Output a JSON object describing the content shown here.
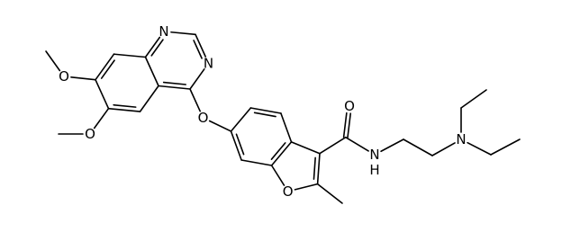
{
  "atoms": [
    {
      "label": "N"
    },
    {
      "label": "N"
    },
    {
      "label": "O"
    },
    {
      "label": "O"
    },
    {
      "label": "O"
    },
    {
      "label": "O"
    },
    {
      "label": "O"
    },
    {
      "label": "N",
      "sub": "H"
    },
    {
      "label": "N"
    }
  ]
}
